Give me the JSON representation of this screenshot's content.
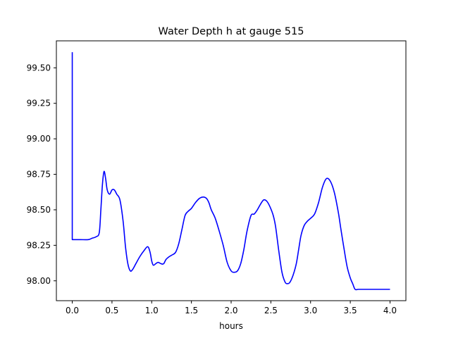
{
  "chart_data": {
    "type": "line",
    "title": "Water Depth h at gauge 515",
    "xlabel": "hours",
    "ylabel": "",
    "xlim": [
      -0.2,
      4.2
    ],
    "ylim": [
      97.86,
      99.69
    ],
    "grid": false,
    "line_color": "#0000ff",
    "x_ticks": [
      0.0,
      0.5,
      1.0,
      1.5,
      2.0,
      2.5,
      3.0,
      3.5,
      4.0
    ],
    "x_tick_labels": [
      "0.0",
      "0.5",
      "1.0",
      "1.5",
      "2.0",
      "2.5",
      "3.0",
      "3.5",
      "4.0"
    ],
    "y_ticks": [
      98.0,
      98.25,
      98.5,
      98.75,
      99.0,
      99.25,
      99.5
    ],
    "y_tick_labels": [
      "98.00",
      "98.25",
      "98.50",
      "98.75",
      "99.00",
      "99.25",
      "99.50"
    ],
    "series": [
      {
        "x": [
          0.0,
          0.0,
          0.001,
          0.1,
          0.2,
          0.25,
          0.3,
          0.34,
          0.36,
          0.38,
          0.4,
          0.42,
          0.44,
          0.47,
          0.5,
          0.53,
          0.56,
          0.6,
          0.64,
          0.67,
          0.7,
          0.73,
          0.76,
          0.8,
          0.85,
          0.9,
          0.95,
          0.98,
          1.0,
          1.02,
          1.05,
          1.08,
          1.12,
          1.15,
          1.18,
          1.22,
          1.25,
          1.3,
          1.34,
          1.38,
          1.42,
          1.46,
          1.5,
          1.55,
          1.6,
          1.65,
          1.69,
          1.72,
          1.75,
          1.8,
          1.85,
          1.9,
          1.95,
          2.0,
          2.04,
          2.08,
          2.12,
          2.16,
          2.2,
          2.25,
          2.29,
          2.33,
          2.37,
          2.41,
          2.45,
          2.49,
          2.53,
          2.56,
          2.6,
          2.64,
          2.68,
          2.71,
          2.74,
          2.78,
          2.82,
          2.85,
          2.88,
          2.92,
          2.96,
          3.0,
          3.05,
          3.1,
          3.15,
          3.2,
          3.25,
          3.3,
          3.35,
          3.38,
          3.42,
          3.46,
          3.5,
          3.53,
          3.56,
          3.6,
          3.64,
          3.68,
          3.72,
          3.76,
          3.8,
          3.85,
          3.9,
          3.95,
          4.0
        ],
        "y": [
          99.61,
          98.29,
          98.29,
          98.29,
          98.29,
          98.3,
          98.31,
          98.34,
          98.5,
          98.68,
          98.77,
          98.72,
          98.64,
          98.61,
          98.64,
          98.64,
          98.61,
          98.57,
          98.42,
          98.24,
          98.12,
          98.07,
          98.08,
          98.12,
          98.17,
          98.21,
          98.24,
          98.2,
          98.14,
          98.11,
          98.12,
          98.13,
          98.12,
          98.12,
          98.15,
          98.17,
          98.18,
          98.2,
          98.26,
          98.36,
          98.46,
          98.49,
          98.51,
          98.55,
          98.58,
          98.59,
          98.58,
          98.55,
          98.5,
          98.44,
          98.35,
          98.25,
          98.13,
          98.07,
          98.06,
          98.07,
          98.12,
          98.22,
          98.35,
          98.46,
          98.47,
          98.5,
          98.54,
          98.57,
          98.56,
          98.52,
          98.46,
          98.38,
          98.21,
          98.06,
          97.99,
          97.98,
          97.99,
          98.04,
          98.12,
          98.22,
          98.32,
          98.39,
          98.42,
          98.44,
          98.47,
          98.55,
          98.66,
          98.72,
          98.7,
          98.62,
          98.48,
          98.37,
          98.23,
          98.1,
          98.02,
          97.98,
          97.94,
          97.94,
          97.94,
          97.94,
          97.94,
          97.94,
          97.94,
          97.94,
          97.94,
          97.94,
          97.94
        ]
      }
    ]
  }
}
